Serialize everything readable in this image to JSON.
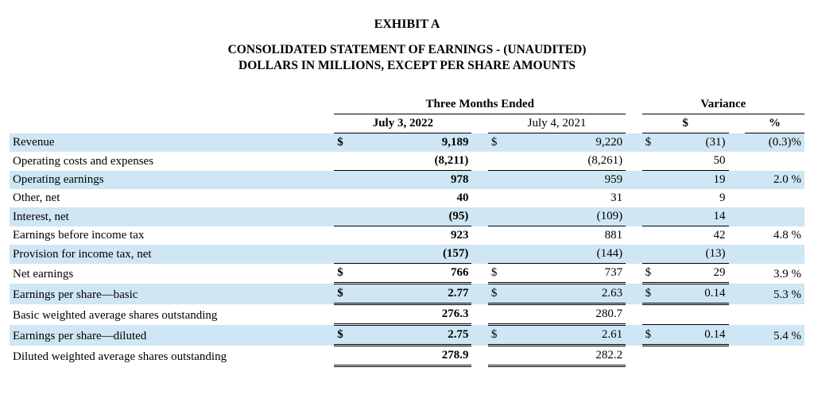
{
  "titles": {
    "exhibit": "EXHIBIT A",
    "statement": "CONSOLIDATED STATEMENT OF EARNINGS - (UNAUDITED)",
    "units": "DOLLARS IN MILLIONS, EXCEPT PER SHARE AMOUNTS"
  },
  "headers": {
    "period_span": "Three Months Ended",
    "col1": "July 3, 2022",
    "col2": "July 4, 2021",
    "variance": "Variance",
    "var_s": "$",
    "var_p": "%"
  },
  "rows": [
    {
      "label": "Revenue",
      "shade": true,
      "c1_sym": "$",
      "c1_val": "9,189",
      "c1_bold": true,
      "c2_sym": "$",
      "c2_val": "9,220",
      "vs_sym": "$",
      "vs_val": "(31)",
      "vp_val": "(0.3)%"
    },
    {
      "label": "Operating costs and expenses",
      "c1_val": "(8,211)",
      "c1_bold": true,
      "c1_rule": "bb",
      "c2_val": "(8,261)",
      "c2_rule": "bb",
      "vs_val": "50",
      "vs_rule": "bb"
    },
    {
      "label": "Operating earnings",
      "shade": true,
      "c1_val": "978",
      "c1_bold": true,
      "c2_val": "959",
      "vs_val": "19",
      "vp_val": "2.0 %"
    },
    {
      "label": "Other, net",
      "c1_val": "40",
      "c1_bold": true,
      "c2_val": "31",
      "vs_val": "9"
    },
    {
      "label": "Interest, net",
      "shade": true,
      "c1_val": "(95)",
      "c1_bold": true,
      "c1_rule": "bb",
      "c2_val": "(109)",
      "c2_rule": "bb",
      "vs_val": "14",
      "vs_rule": "bb"
    },
    {
      "label": "Earnings before income tax",
      "c1_val": "923",
      "c1_bold": true,
      "c2_val": "881",
      "vs_val": "42",
      "vp_val": "4.8 %"
    },
    {
      "label": "Provision for income tax, net",
      "shade": true,
      "c1_val": "(157)",
      "c1_bold": true,
      "c1_rule": "bb",
      "c2_val": "(144)",
      "c2_rule": "bb",
      "vs_val": "(13)",
      "vs_rule": "bb"
    },
    {
      "label": "Net earnings",
      "c1_sym": "$",
      "c1_val": "766",
      "c1_bold": true,
      "c1_rule": "dbl",
      "c2_sym": "$",
      "c2_val": "737",
      "c2_rule": "dbl",
      "vs_sym": "$",
      "vs_val": "29",
      "vs_rule": "dbl",
      "vp_val": "3.9 %"
    },
    {
      "label": "Earnings per share—basic",
      "shade": true,
      "c1_sym": "$",
      "c1_val": "2.77",
      "c1_bold": true,
      "c1_rule": "dbl",
      "c2_sym": "$",
      "c2_val": "2.63",
      "c2_rule": "dbl",
      "vs_sym": "$",
      "vs_val": "0.14",
      "vs_rule": "dbl",
      "vp_val": "5.3 %"
    },
    {
      "label": "Basic weighted average shares outstanding",
      "c1_val": "276.3",
      "c1_bold": true,
      "c1_rule": "dbl",
      "c2_val": "280.7",
      "c2_rule": "dbl"
    },
    {
      "label": "Earnings per share—diluted",
      "shade": true,
      "c1_sym": "$",
      "c1_val": "2.75",
      "c1_bold": true,
      "c1_rule": "dbl",
      "c2_sym": "$",
      "c2_val": "2.61",
      "c2_rule": "dbl",
      "vs_sym": "$",
      "vs_val": "0.14",
      "vs_rule": "dbl",
      "vp_val": "5.4 %"
    },
    {
      "label": "Diluted weighted average shares outstanding",
      "c1_val": "278.9",
      "c1_bold": true,
      "c1_rule": "dbl",
      "c2_val": "282.2",
      "c2_rule": "dbl"
    }
  ],
  "style": {
    "shade_color": "#cfe6f4",
    "font_family": "Times New Roman",
    "title_fontsize_pt": 16,
    "body_fontsize_pt": 15
  }
}
